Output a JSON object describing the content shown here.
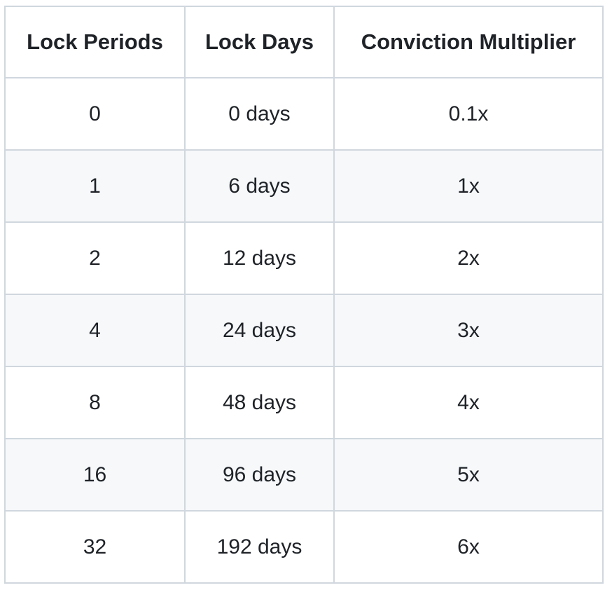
{
  "table": {
    "headers": [
      "Lock Periods",
      "Lock Days",
      "Conviction Multiplier"
    ],
    "rows": [
      [
        "0",
        "0 days",
        "0.1x"
      ],
      [
        "1",
        "6 days",
        "1x"
      ],
      [
        "2",
        "12 days",
        "2x"
      ],
      [
        "4",
        "24 days",
        "3x"
      ],
      [
        "8",
        "48 days",
        "4x"
      ],
      [
        "16",
        "96 days",
        "5x"
      ],
      [
        "32",
        "192 days",
        "6x"
      ]
    ]
  },
  "colors": {
    "border": "#d0d7de",
    "stripe": "#f6f8fa",
    "text": "#1f2328"
  }
}
